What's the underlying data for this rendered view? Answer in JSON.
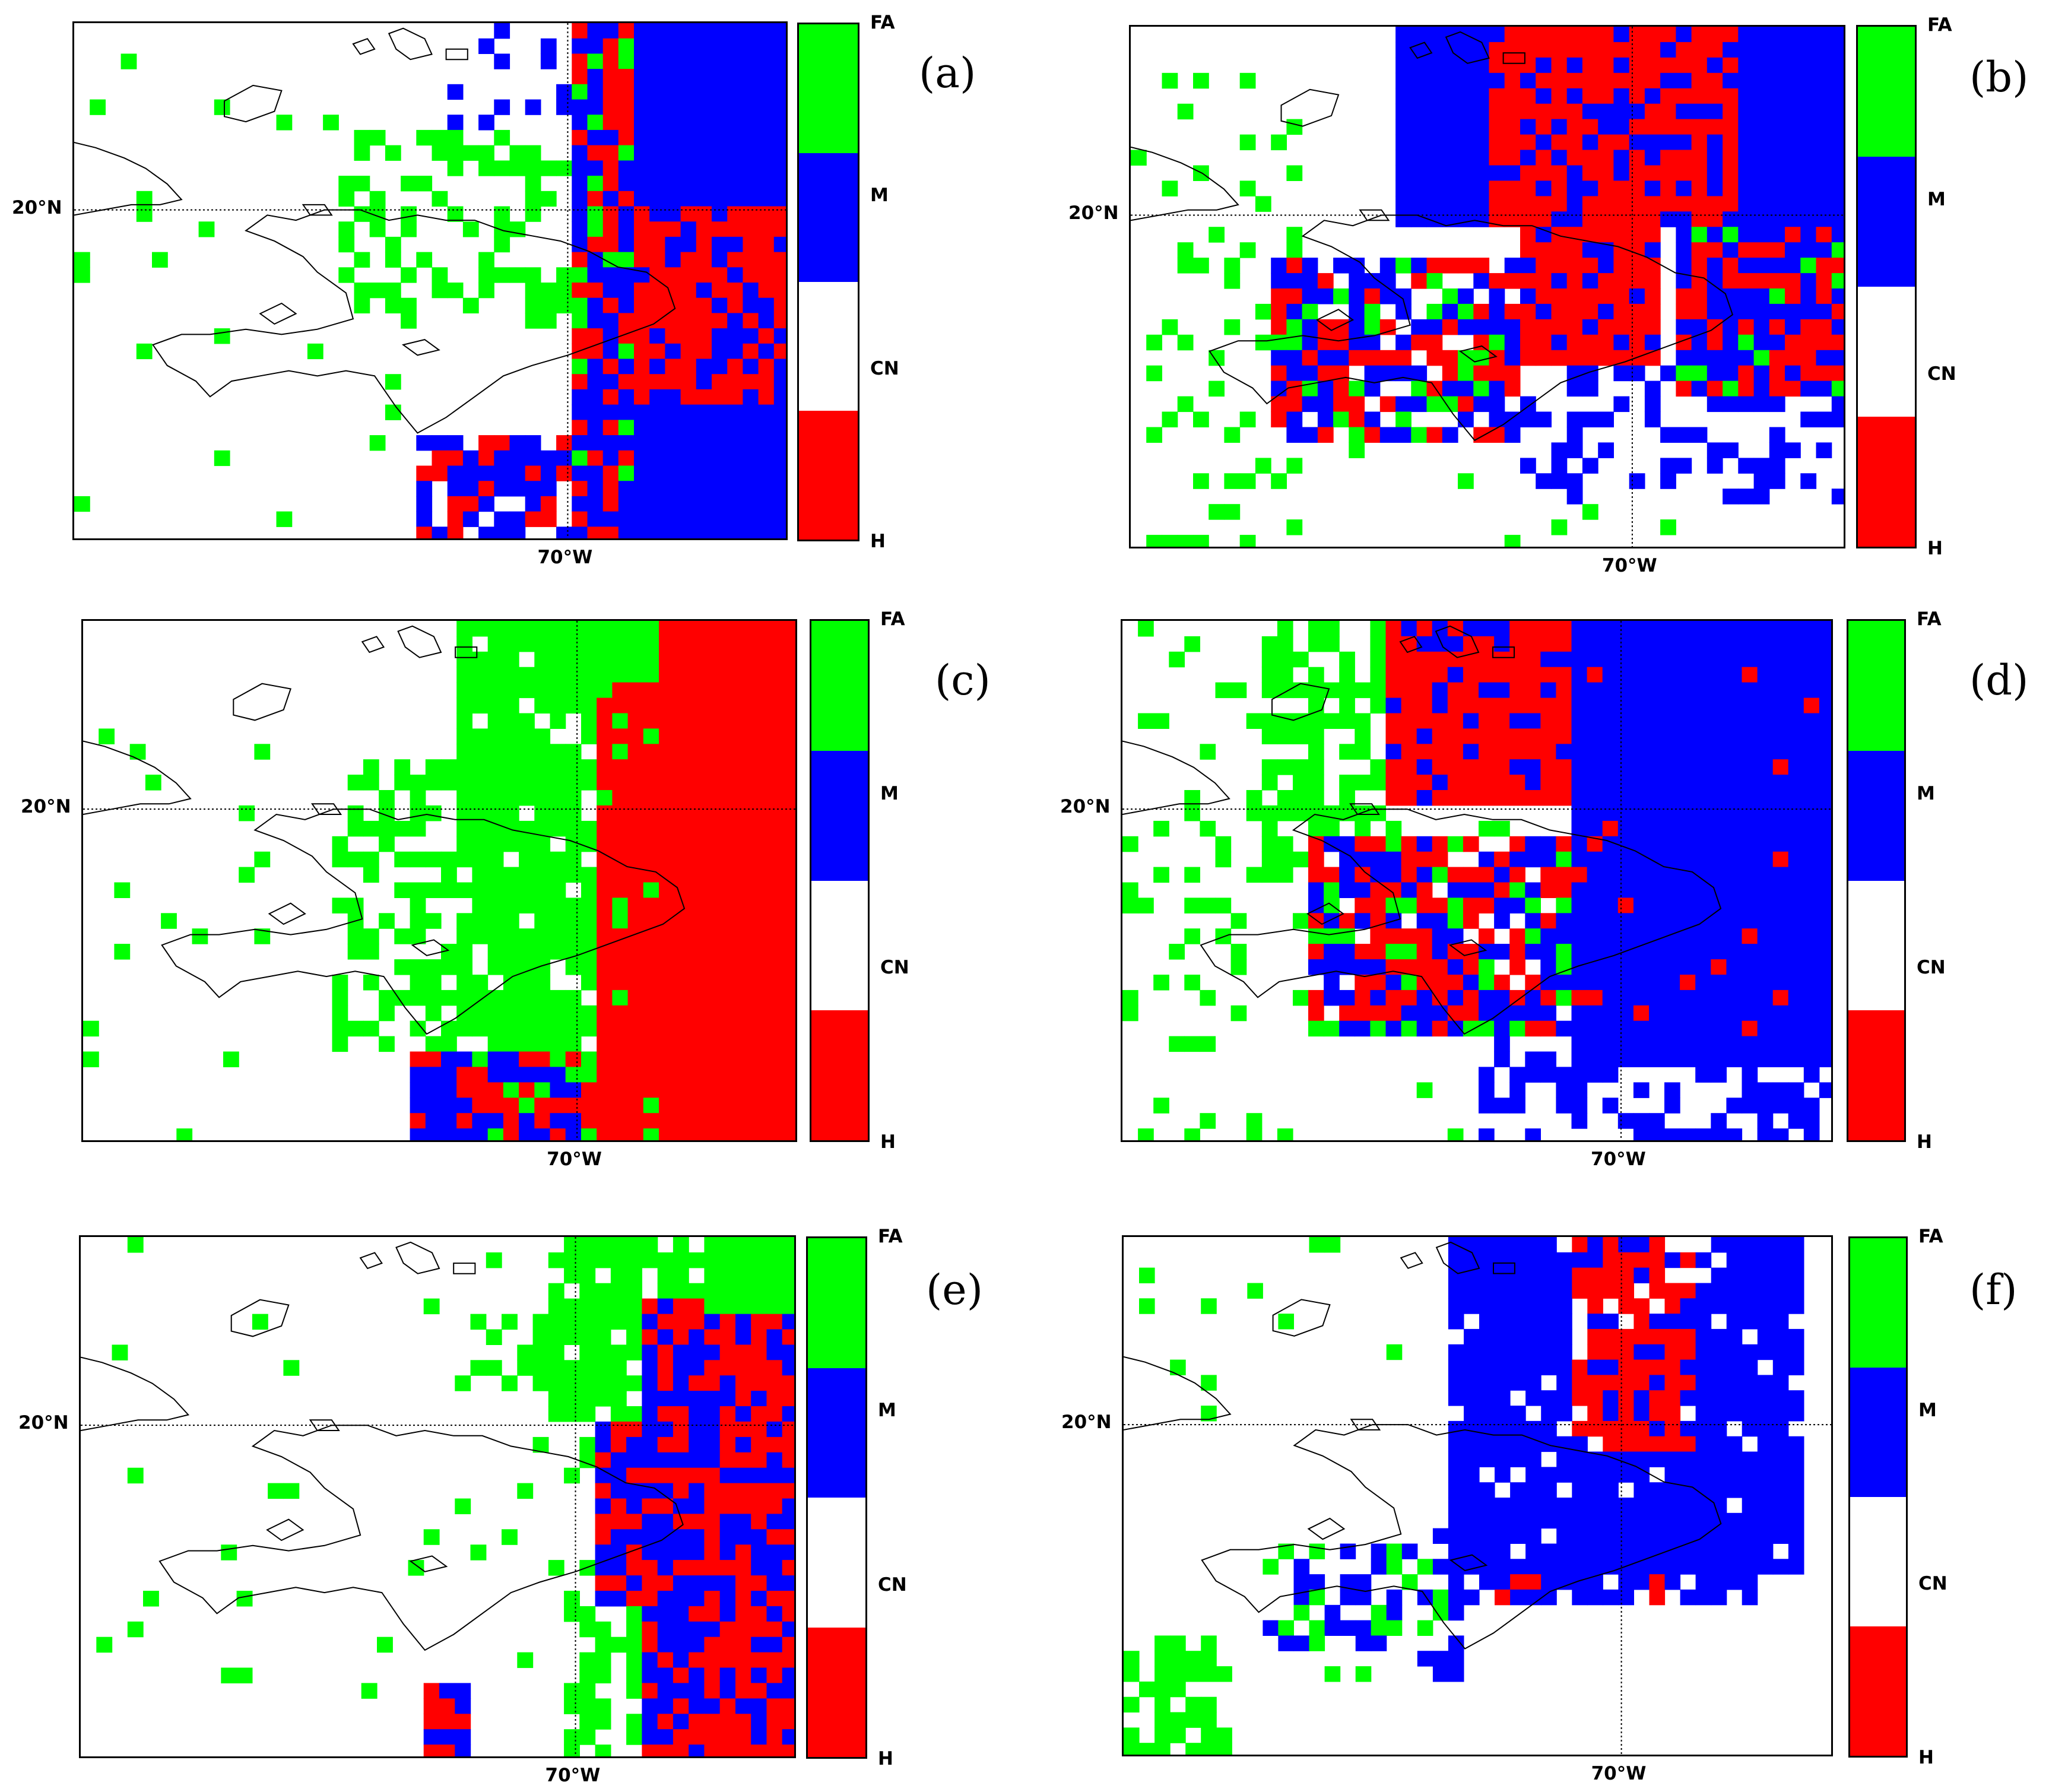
{
  "colors": {
    "H": "#ff0000",
    "CN": "#ffffff",
    "M": "#0000ff",
    "FA": "#00ff00"
  },
  "legend_order_top_to_bottom": [
    "FA",
    "M",
    "CN",
    "H"
  ],
  "axis": {
    "lat_label": "20°N",
    "lon_label": "70°W"
  },
  "panels": [
    {
      "label": "(a)"
    },
    {
      "label": "(b)"
    },
    {
      "label": "(c)"
    },
    {
      "label": "(d)"
    },
    {
      "label": "(e)"
    },
    {
      "label": "(f)"
    }
  ],
  "categories": [
    "H",
    "CN",
    "M",
    "FA"
  ]
}
